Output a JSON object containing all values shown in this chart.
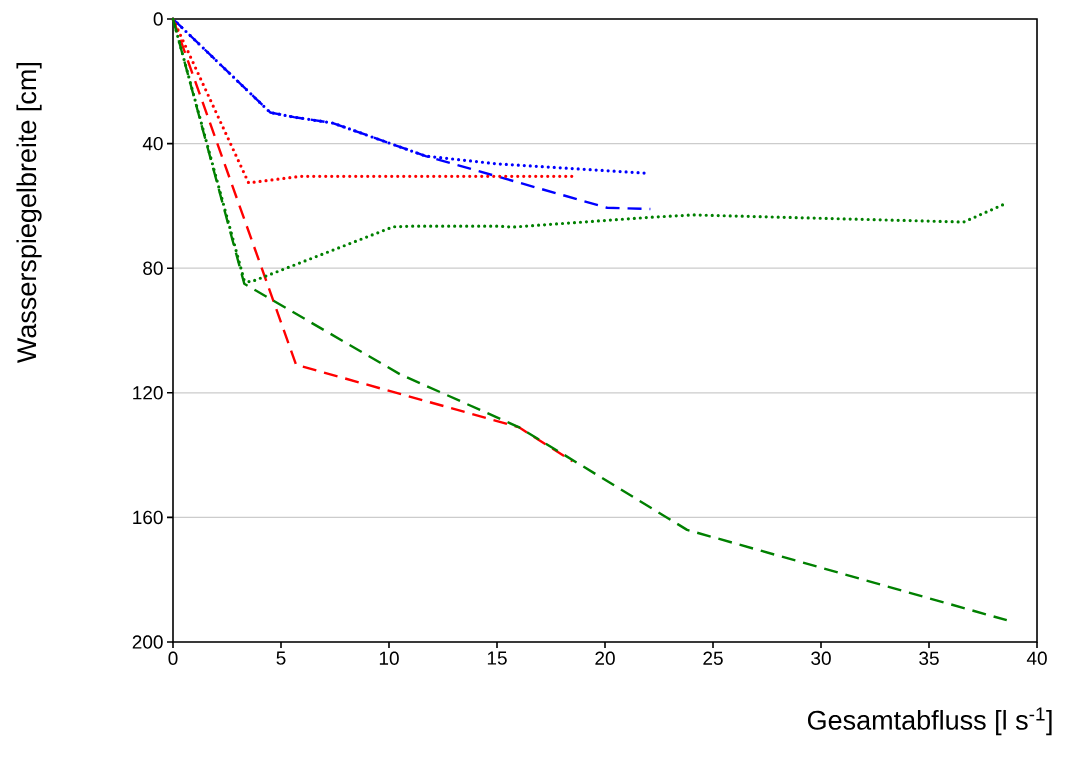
{
  "chart_data": {
    "type": "line",
    "xlabel": "Gesamtabfluss [l s$^{-1}$]",
    "ylabel": "Wasserspiegelbreite [cm]",
    "xlim": [
      0,
      40
    ],
    "ylim": [
      200,
      0
    ],
    "xticks": [
      0,
      5,
      10,
      15,
      20,
      25,
      30,
      35,
      40
    ],
    "yticks": [
      0,
      40,
      80,
      120,
      160,
      200
    ],
    "grid": "y",
    "marker": "none",
    "series": [
      {
        "color": "#0000ff",
        "line_style": "dotted",
        "x": [
          0,
          4.5,
          5.6,
          7.4,
          11.7,
          15,
          21.9
        ],
        "values": [
          0,
          30,
          31.5,
          33.4,
          44,
          46.5,
          49.5
        ]
      },
      {
        "color": "#0000ff",
        "line_style": "dashed",
        "x": [
          0,
          4.5,
          5.6,
          7.4,
          11.7,
          20.1,
          22.1
        ],
        "values": [
          0,
          30,
          31.5,
          33.4,
          44,
          60.6,
          61
        ]
      },
      {
        "color": "#ff0000",
        "line_style": "dotted",
        "x": [
          0,
          3.5,
          5.9,
          18.5
        ],
        "values": [
          0,
          52.6,
          50.5,
          50.5
        ]
      },
      {
        "color": "#ff0000",
        "line_style": "dashed",
        "x": [
          0,
          5.7,
          16,
          18.5
        ],
        "values": [
          0,
          111,
          131,
          142
        ]
      },
      {
        "color": "#008000",
        "line_style": "dotted",
        "x": [
          0,
          3.3,
          3.6,
          10.2,
          11.1,
          15.1,
          15.7,
          22.2,
          24.1,
          36.2,
          36.6,
          38.5
        ],
        "values": [
          0,
          84,
          84.4,
          66.7,
          66.5,
          66.5,
          66.8,
          63.6,
          62.9,
          65.1,
          65.2,
          59.4
        ]
      },
      {
        "color": "#008000",
        "line_style": "dashed",
        "x": [
          0,
          3.3,
          10.5,
          16,
          23.8,
          38.6
        ],
        "values": [
          0,
          85,
          114,
          131,
          164,
          193
        ]
      }
    ]
  }
}
